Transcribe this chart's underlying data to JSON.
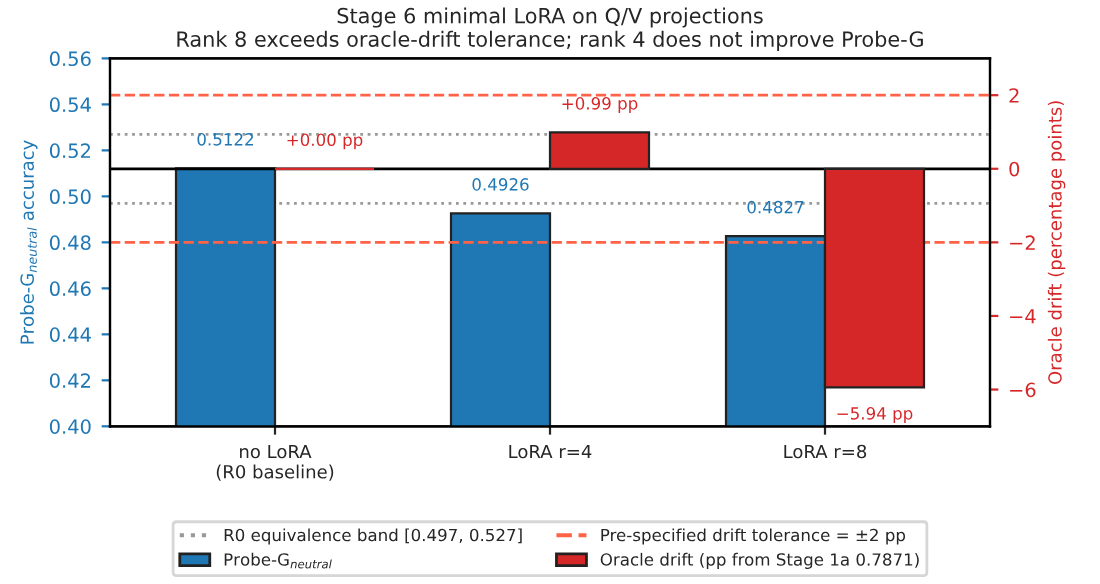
{
  "chart_data": {
    "type": "bar",
    "title": "Stage 6 minimal LoRA on Q/V projections",
    "subtitle": "Rank 8 exceeds oracle-drift tolerance; rank 4 does not improve Probe-G",
    "categories": [
      "no LoRA\n(R0 baseline)",
      "LoRA r=4",
      "LoRA r=8"
    ],
    "ylabel": "Probe-G$_{neutral}$ accuracy",
    "y2label": "Oracle drift (percentage points)",
    "series": [
      {
        "name": "Probe-G$_{neutral}$",
        "color": "#1f77b4",
        "values": [
          0.5122,
          0.4926,
          0.4827
        ],
        "value_labels": [
          "0.5122",
          "0.4926",
          "0.4827"
        ]
      },
      {
        "name": "Oracle drift (pp from Stage 1a 0.7871)",
        "color": "#d62728",
        "axis": "y2",
        "values": [
          0.0,
          0.99,
          -5.94
        ],
        "value_labels": [
          "+0.00 pp",
          "+0.99 pp",
          "−5.94 pp"
        ]
      }
    ],
    "ylim": [
      0.4,
      0.56
    ],
    "yticks": [
      {
        "value": 0.4,
        "label": "0.40"
      },
      {
        "value": 0.42,
        "label": "0.42"
      },
      {
        "value": 0.44,
        "label": "0.44"
      },
      {
        "value": 0.46,
        "label": "0.46"
      },
      {
        "value": 0.48,
        "label": "0.48"
      },
      {
        "value": 0.5,
        "label": "0.50"
      },
      {
        "value": 0.52,
        "label": "0.52"
      },
      {
        "value": 0.54,
        "label": "0.54"
      },
      {
        "value": 0.56,
        "label": "0.56"
      }
    ],
    "y2lim": [
      -7,
      3
    ],
    "y2ticks": [
      {
        "value": -6,
        "label": "−6"
      },
      {
        "value": -4,
        "label": "−4"
      },
      {
        "value": -2,
        "label": "−2"
      },
      {
        "value": 0,
        "label": "0"
      },
      {
        "value": 2,
        "label": "2"
      }
    ],
    "ref_lines": [
      {
        "axis": "y",
        "value": 0.497,
        "label": "R0 equivalence band [0.497, 0.527]",
        "color": "#999999",
        "line_style": "dotted"
      },
      {
        "axis": "y",
        "value": 0.527,
        "label": null,
        "color": "#999999",
        "line_style": "dotted"
      },
      {
        "axis": "y2",
        "value": -2,
        "label": "Pre-specified drift tolerance = ±2 pp",
        "color": "#ff6347",
        "line_style": "dashed"
      },
      {
        "axis": "y2",
        "value": 2,
        "label": null,
        "color": "#ff6347",
        "line_style": "dashed"
      },
      {
        "axis": "y2",
        "value": 0,
        "label": null,
        "color": "#000000",
        "line_style": "solid"
      }
    ],
    "legend": "bottom",
    "grid": false
  }
}
